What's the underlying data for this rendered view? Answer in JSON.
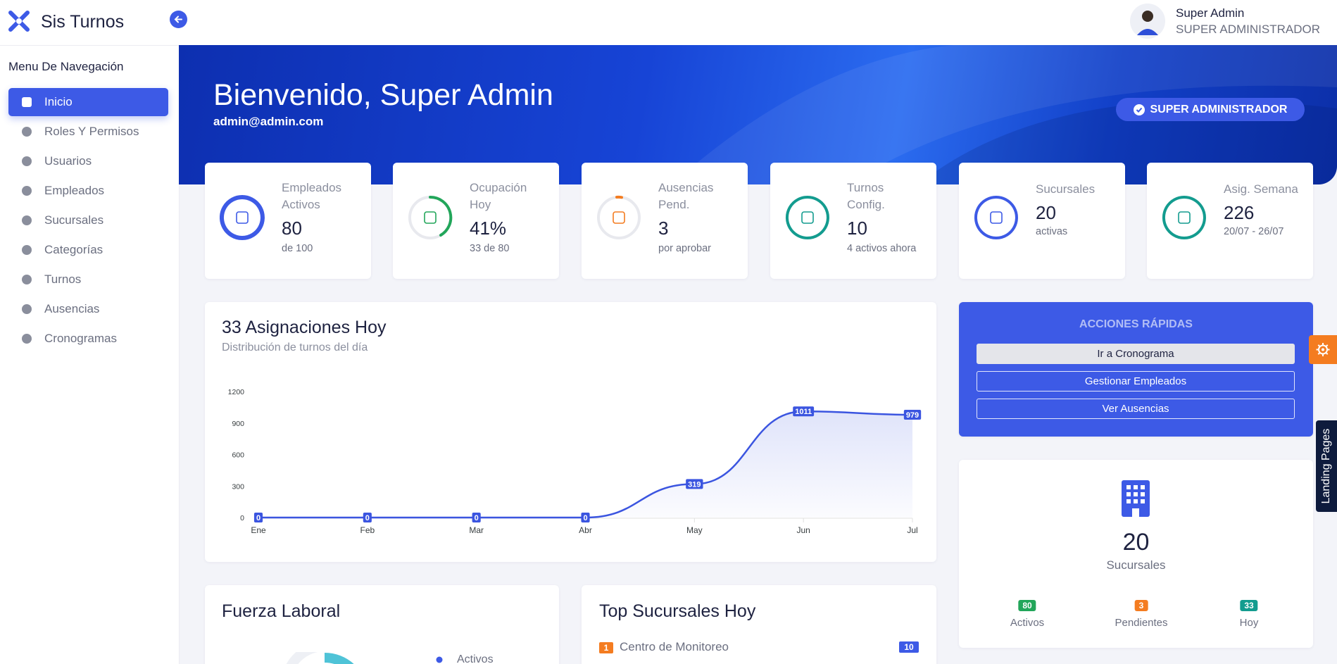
{
  "header": {
    "brand": "Sis Turnos",
    "user_name": "Super Admin",
    "user_role": "SUPER ADMINISTRADOR"
  },
  "sidebar": {
    "title": "Menu De Navegación",
    "items": [
      "Inicio",
      "Roles Y Permisos",
      "Usuarios",
      "Empleados",
      "Sucursales",
      "Categorías",
      "Turnos",
      "Ausencias",
      "Cronogramas"
    ]
  },
  "banner": {
    "title": "Bienvenido, Super Admin",
    "email": "admin@admin.com",
    "badge": "SUPER ADMINISTRADOR"
  },
  "stats": [
    {
      "label": "Empleados Activos",
      "value": "80",
      "sub": "de 100"
    },
    {
      "label": "Ocupación Hoy",
      "value": "41%",
      "sub": "33 de 80"
    },
    {
      "label": "Ausencias Pend.",
      "value": "3",
      "sub": "por aprobar"
    },
    {
      "label": "Turnos Config.",
      "value": "10",
      "sub": "4 activos ahora"
    },
    {
      "label": "Sucursales",
      "value": "20",
      "sub": "activas"
    },
    {
      "label": "Asig. Semana",
      "value": "226",
      "sub": "20/07 - 26/07"
    }
  ],
  "chart_data": {
    "type": "line",
    "title": "33 Asignaciones Hoy",
    "subtitle": "Distribución de turnos del día",
    "categories": [
      "Ene",
      "Feb",
      "Mar",
      "Abr",
      "May",
      "Jun",
      "Jul"
    ],
    "values": [
      0,
      0,
      0,
      0,
      319,
      1011,
      979
    ],
    "color": "#3b55e0",
    "ylim": [
      0,
      1200
    ],
    "yticks": [
      0,
      300,
      600,
      900,
      1200
    ],
    "grid": false
  },
  "quick_actions": {
    "title": "ACCIONES RÁPIDAS",
    "buttons": [
      "Ir a Cronograma",
      "Gestionar Empleados",
      "Ver Ausencias"
    ]
  },
  "branches": {
    "value": "20",
    "label": "Sucursales",
    "badges": [
      {
        "value": "80",
        "label": "Activos"
      },
      {
        "value": "3",
        "label": "Pendientes"
      },
      {
        "value": "33",
        "label": "Hoy"
      }
    ]
  },
  "workforce": {
    "title": "Fuerza Laboral",
    "legend": [
      "Activos"
    ]
  },
  "top_branches": {
    "title": "Top Sucursales Hoy",
    "rows": [
      {
        "rank": "1",
        "name": "Centro de Monitoreo",
        "count": "10"
      }
    ]
  },
  "side_tabs": {
    "landing": "Landing Pages"
  }
}
